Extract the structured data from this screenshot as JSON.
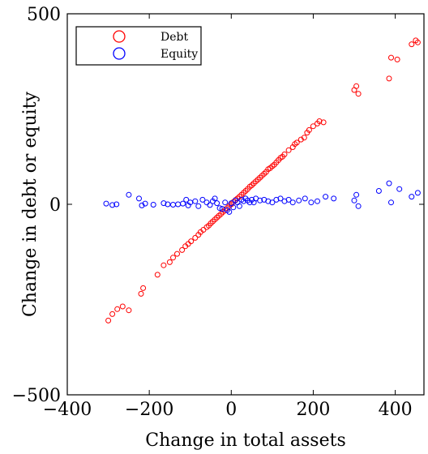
{
  "chart_data": {
    "type": "scatter",
    "xlabel": "Change in total assets",
    "ylabel": "Change in debt or equity",
    "xlim": [
      -400,
      470
    ],
    "ylim": [
      -500,
      500
    ],
    "x_ticks": [
      {
        "value": -400,
        "label": "−400"
      },
      {
        "value": -200,
        "label": "−200"
      },
      {
        "value": 0,
        "label": "0"
      },
      {
        "value": 200,
        "label": "200"
      },
      {
        "value": 400,
        "label": "400"
      }
    ],
    "y_ticks": [
      {
        "value": -500,
        "label": "−500"
      },
      {
        "value": 0,
        "label": "0"
      },
      {
        "value": 500,
        "label": "500"
      }
    ],
    "legend_position": "top-left",
    "series": [
      {
        "name": "Debt",
        "color": "#ff0000",
        "points": [
          [
            -300,
            -305
          ],
          [
            -290,
            -288
          ],
          [
            -278,
            -275
          ],
          [
            -265,
            -268
          ],
          [
            -250,
            -278
          ],
          [
            -220,
            -235
          ],
          [
            -215,
            -220
          ],
          [
            -180,
            -185
          ],
          [
            -165,
            -160
          ],
          [
            -150,
            -152
          ],
          [
            -142,
            -140
          ],
          [
            -132,
            -130
          ],
          [
            -120,
            -120
          ],
          [
            -112,
            -110
          ],
          [
            -105,
            -104
          ],
          [
            -98,
            -97
          ],
          [
            -88,
            -88
          ],
          [
            -80,
            -80
          ],
          [
            -75,
            -73
          ],
          [
            -68,
            -67
          ],
          [
            -60,
            -60
          ],
          [
            -55,
            -56
          ],
          [
            -50,
            -50
          ],
          [
            -45,
            -45
          ],
          [
            -40,
            -40
          ],
          [
            -35,
            -35
          ],
          [
            -30,
            -30
          ],
          [
            -25,
            -25
          ],
          [
            -20,
            -20
          ],
          [
            -15,
            -15
          ],
          [
            -10,
            -10
          ],
          [
            -5,
            -5
          ],
          [
            0,
            0
          ],
          [
            5,
            6
          ],
          [
            10,
            11
          ],
          [
            15,
            15
          ],
          [
            20,
            20
          ],
          [
            25,
            25
          ],
          [
            30,
            30
          ],
          [
            35,
            35
          ],
          [
            40,
            40
          ],
          [
            45,
            46
          ],
          [
            50,
            50
          ],
          [
            55,
            55
          ],
          [
            60,
            60
          ],
          [
            65,
            65
          ],
          [
            70,
            70
          ],
          [
            75,
            75
          ],
          [
            80,
            80
          ],
          [
            85,
            85
          ],
          [
            90,
            92
          ],
          [
            95,
            95
          ],
          [
            100,
            100
          ],
          [
            105,
            104
          ],
          [
            110,
            110
          ],
          [
            115,
            116
          ],
          [
            120,
            122
          ],
          [
            125,
            125
          ],
          [
            130,
            131
          ],
          [
            140,
            142
          ],
          [
            150,
            150
          ],
          [
            155,
            158
          ],
          [
            160,
            162
          ],
          [
            170,
            170
          ],
          [
            178,
            175
          ],
          [
            185,
            188
          ],
          [
            190,
            195
          ],
          [
            200,
            205
          ],
          [
            210,
            212
          ],
          [
            215,
            218
          ],
          [
            225,
            215
          ],
          [
            300,
            300
          ],
          [
            305,
            310
          ],
          [
            310,
            290
          ],
          [
            385,
            330
          ],
          [
            390,
            385
          ],
          [
            405,
            380
          ],
          [
            440,
            420
          ],
          [
            450,
            430
          ],
          [
            455,
            425
          ]
        ]
      },
      {
        "name": "Equity",
        "color": "#0000ff",
        "points": [
          [
            -305,
            2
          ],
          [
            -290,
            -2
          ],
          [
            -280,
            0
          ],
          [
            -250,
            25
          ],
          [
            -225,
            15
          ],
          [
            -218,
            -3
          ],
          [
            -210,
            2
          ],
          [
            -190,
            -1
          ],
          [
            -165,
            3
          ],
          [
            -155,
            0
          ],
          [
            -142,
            -1
          ],
          [
            -130,
            0
          ],
          [
            -118,
            2
          ],
          [
            -110,
            12
          ],
          [
            -105,
            -3
          ],
          [
            -100,
            5
          ],
          [
            -88,
            8
          ],
          [
            -80,
            -5
          ],
          [
            -70,
            12
          ],
          [
            -60,
            5
          ],
          [
            -52,
            -2
          ],
          [
            -45,
            8
          ],
          [
            -40,
            15
          ],
          [
            -35,
            3
          ],
          [
            -28,
            -10
          ],
          [
            -22,
            -12
          ],
          [
            -15,
            5
          ],
          [
            -10,
            -15
          ],
          [
            -5,
            -20
          ],
          [
            0,
            3
          ],
          [
            5,
            -8
          ],
          [
            10,
            10
          ],
          [
            15,
            5
          ],
          [
            20,
            -5
          ],
          [
            25,
            12
          ],
          [
            30,
            8
          ],
          [
            35,
            15
          ],
          [
            40,
            10
          ],
          [
            45,
            5
          ],
          [
            50,
            12
          ],
          [
            55,
            5
          ],
          [
            60,
            15
          ],
          [
            70,
            10
          ],
          [
            80,
            12
          ],
          [
            90,
            8
          ],
          [
            100,
            5
          ],
          [
            110,
            12
          ],
          [
            120,
            15
          ],
          [
            130,
            8
          ],
          [
            140,
            12
          ],
          [
            150,
            5
          ],
          [
            165,
            10
          ],
          [
            180,
            15
          ],
          [
            195,
            5
          ],
          [
            210,
            8
          ],
          [
            230,
            20
          ],
          [
            250,
            15
          ],
          [
            300,
            10
          ],
          [
            305,
            25
          ],
          [
            310,
            -5
          ],
          [
            360,
            35
          ],
          [
            385,
            55
          ],
          [
            390,
            5
          ],
          [
            410,
            40
          ],
          [
            440,
            20
          ],
          [
            455,
            30
          ]
        ]
      }
    ]
  }
}
